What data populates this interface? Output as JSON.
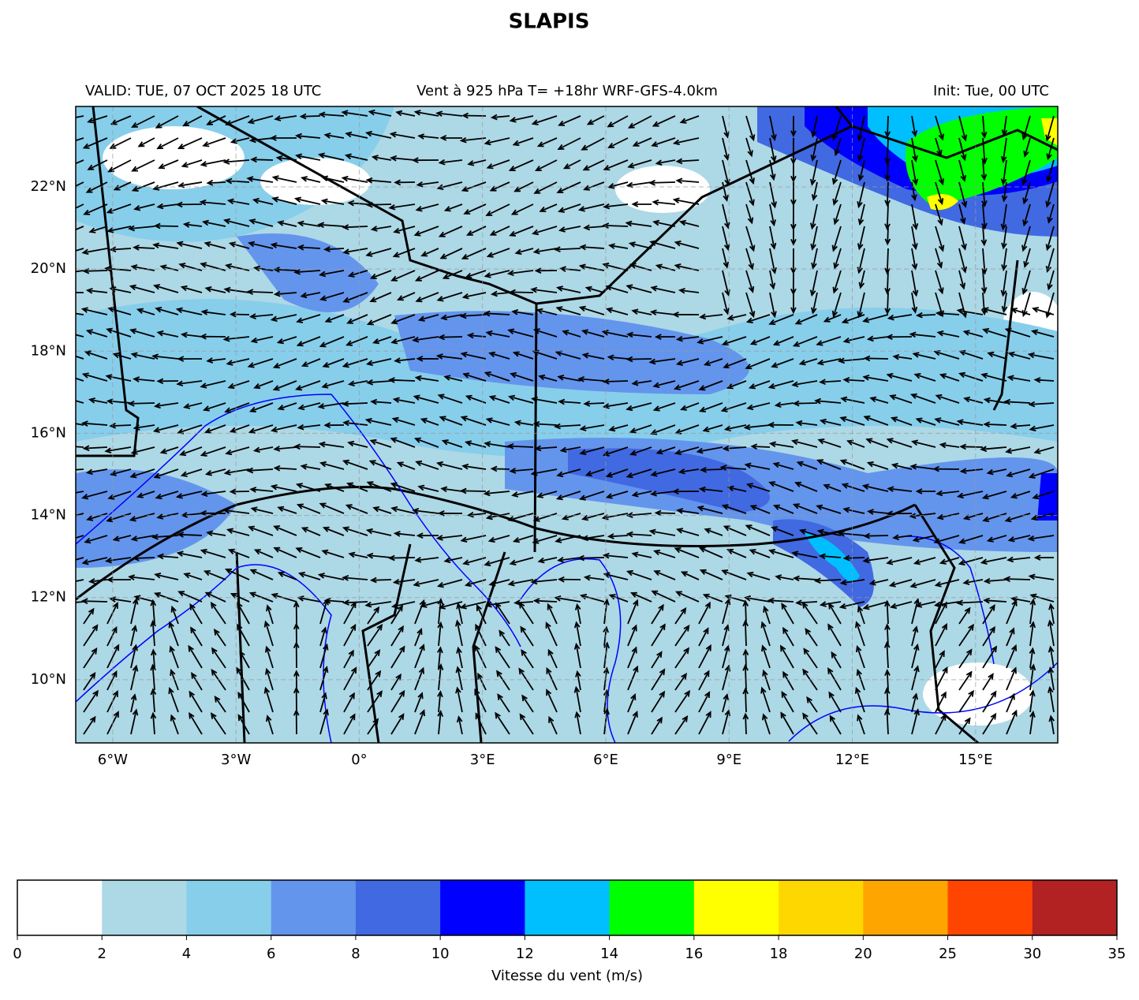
{
  "title": "SLAPIS",
  "header": {
    "left": "VALID: TUE, 07 OCT 2025 18 UTC",
    "center": "Vent à 925 hPa T= +18hr  WRF-GFS-4.0km",
    "right": "Init: Tue, 00 UTC"
  },
  "map": {
    "xlim": [
      -6.9,
      17.0
    ],
    "ylim": [
      8.46,
      23.96
    ],
    "lon_ticks": [
      {
        "value": -6,
        "label": "6°W"
      },
      {
        "value": -3,
        "label": "3°W"
      },
      {
        "value": 0,
        "label": "0°"
      },
      {
        "value": 3,
        "label": "3°E"
      },
      {
        "value": 6,
        "label": "6°E"
      },
      {
        "value": 9,
        "label": "9°E"
      },
      {
        "value": 12,
        "label": "12°E"
      },
      {
        "value": 15,
        "label": "15°E"
      }
    ],
    "lat_ticks": [
      {
        "value": 10,
        "label": "10°N"
      },
      {
        "value": 12,
        "label": "12°N"
      },
      {
        "value": 14,
        "label": "14°N"
      },
      {
        "value": 16,
        "label": "16°N"
      },
      {
        "value": 18,
        "label": "18°N"
      },
      {
        "value": 20,
        "label": "20°N"
      },
      {
        "value": 22,
        "label": "22°N"
      }
    ]
  },
  "colorbar": {
    "label": "Vitesse du vent (m/s)",
    "levels": [
      0,
      2,
      4,
      6,
      8,
      10,
      12,
      14,
      16,
      18,
      20,
      25,
      30,
      35
    ],
    "colors": [
      "#ffffff",
      "#add8e6",
      "#87ceeb",
      "#6495ed",
      "#4169e1",
      "#0000ff",
      "#00bfff",
      "#00ff00",
      "#ffff00",
      "#ffd700",
      "#ffa500",
      "#ff4500",
      "#b22222"
    ]
  }
}
